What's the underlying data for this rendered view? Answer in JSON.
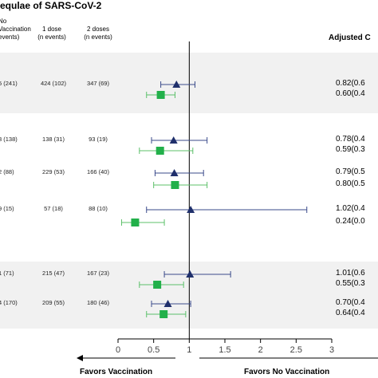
{
  "title": "equlae of SARS-CoV-2",
  "headers": {
    "col1": [
      "No",
      "Vaccination",
      "events)"
    ],
    "col2": [
      "1 dose",
      "(n events)"
    ],
    "col3": [
      "2 doses",
      "(n events)"
    ],
    "adjusted": "Adjusted C"
  },
  "rows": [
    {
      "no_vax": "5 (241)",
      "dose1": "424 (102)",
      "dose2": "347 (69)"
    },
    {
      "no_vax": "3 (138)",
      "dose1": "138 (31)",
      "dose2": "93 (19)"
    },
    {
      "no_vax": "2 (88)",
      "dose1": "229 (53)",
      "dose2": "166 (40)"
    },
    {
      "no_vax": "9 (15)",
      "dose1": "57 (18)",
      "dose2": "88 (10)"
    },
    {
      "no_vax": "1 (71)",
      "dose1": "215 (47)",
      "dose2": "167 (23)"
    },
    {
      "no_vax": "4 (170)",
      "dose1": "209 (55)",
      "dose2": "180 (46)"
    }
  ],
  "ci_labels": [
    [
      "0.82(0.6",
      "0.60(0.4"
    ],
    [
      "0.78(0.4",
      "0.59(0.3"
    ],
    [
      "0.79(0.5",
      "0.80(0.5"
    ],
    [
      "1.02(0.4",
      "0.24(0.0"
    ],
    [
      "1.01(0.6",
      "0.55(0.3"
    ],
    [
      "0.70(0.4",
      "0.64(0.4"
    ]
  ],
  "footer": {
    "left": "Favors Vaccination",
    "right": "Favors No Vaccination"
  },
  "colors": {
    "one_dose": "#1f2f6b",
    "two_doses": "#22b04a",
    "ci_line_1": "#3a4a8a",
    "ci_line_2": "#5cc06a",
    "band": "#f1f1f1"
  },
  "chart_data": {
    "type": "scatter",
    "xlim": [
      0,
      3
    ],
    "x_ticks": [
      "0",
      "0.5",
      "1",
      "1.5",
      "2",
      "2.5",
      "3"
    ],
    "reference_line": 1,
    "series": [
      {
        "marker": "triangle",
        "estimates": [
          0.82,
          0.78,
          0.79,
          1.02,
          1.01,
          0.7
        ],
        "lower": [
          0.6,
          0.47,
          0.52,
          0.4,
          0.65,
          0.47
        ],
        "upper": [
          1.08,
          1.25,
          1.2,
          2.65,
          1.58,
          1.02
        ]
      },
      {
        "marker": "square",
        "estimates": [
          0.6,
          0.59,
          0.8,
          0.24,
          0.55,
          0.64
        ],
        "lower": [
          0.4,
          0.3,
          0.5,
          0.05,
          0.3,
          0.4
        ],
        "upper": [
          0.8,
          1.05,
          1.25,
          0.65,
          0.92,
          0.95
        ]
      }
    ]
  }
}
